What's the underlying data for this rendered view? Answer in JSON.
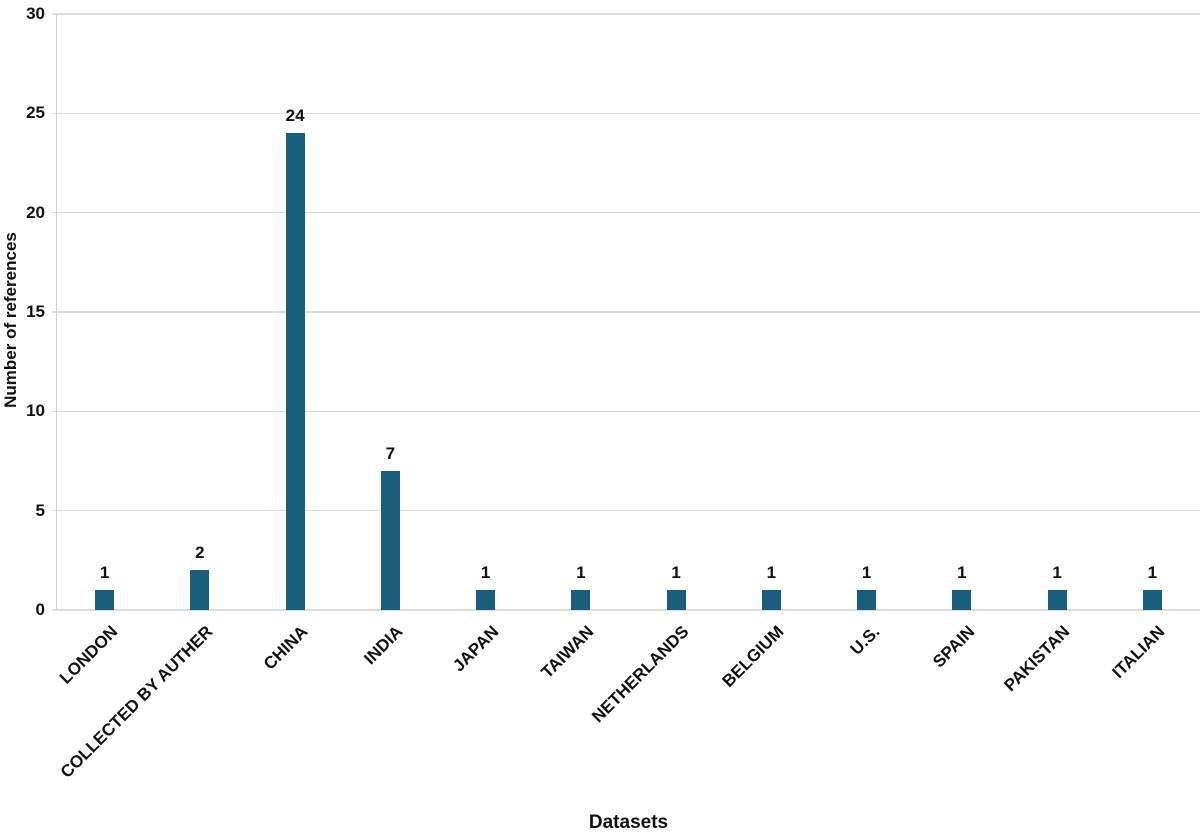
{
  "chart_data": {
    "type": "bar",
    "title": "",
    "xlabel": "Datasets",
    "ylabel": "Number of references",
    "categories": [
      "LONDON",
      "COLLECTED BY AUTHER",
      "CHINA",
      "INDIA",
      "JAPAN",
      "TAIWAN",
      "NETHERLANDS",
      "BELGIUM",
      "U.S.",
      "SPAIN",
      "PAKISTAN",
      "ITALIAN"
    ],
    "values": [
      1,
      2,
      24,
      7,
      1,
      1,
      1,
      1,
      1,
      1,
      1,
      1
    ],
    "data_labels": [
      "1",
      "2",
      "24",
      "7",
      "1",
      "1",
      "1",
      "1",
      "1",
      "1",
      "1",
      "1"
    ],
    "ylim": [
      0,
      30
    ],
    "y_ticks": [
      "0",
      "5",
      "10",
      "15",
      "20",
      "25",
      "30"
    ],
    "grid": true,
    "legend_position": "none",
    "bar_color": "#1A5E7E",
    "gridline_color": "#DCDCDC",
    "axis_line_color": "#D4D4D4",
    "text_color": "#111111",
    "x_label_rotation_deg": 45
  }
}
